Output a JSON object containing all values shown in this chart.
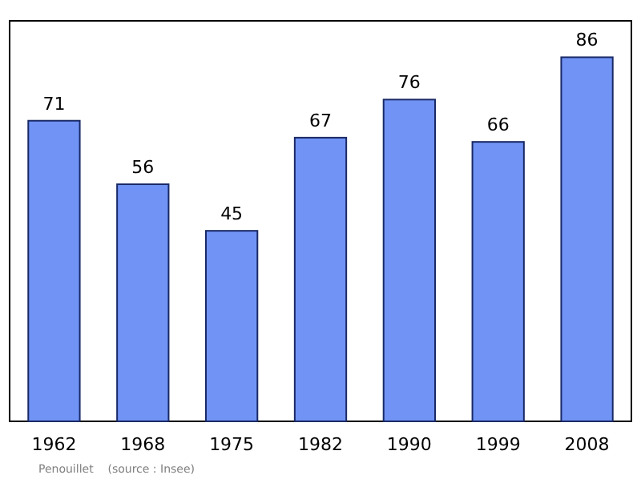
{
  "chart_data": {
    "type": "bar",
    "categories": [
      "1962",
      "1968",
      "1975",
      "1982",
      "1990",
      "1999",
      "2008"
    ],
    "values": [
      71,
      56,
      45,
      67,
      76,
      66,
      86
    ],
    "color": "#7093f5",
    "data_labels": true,
    "annotations": [
      "Penouillet    (source : Insee)"
    ]
  }
}
